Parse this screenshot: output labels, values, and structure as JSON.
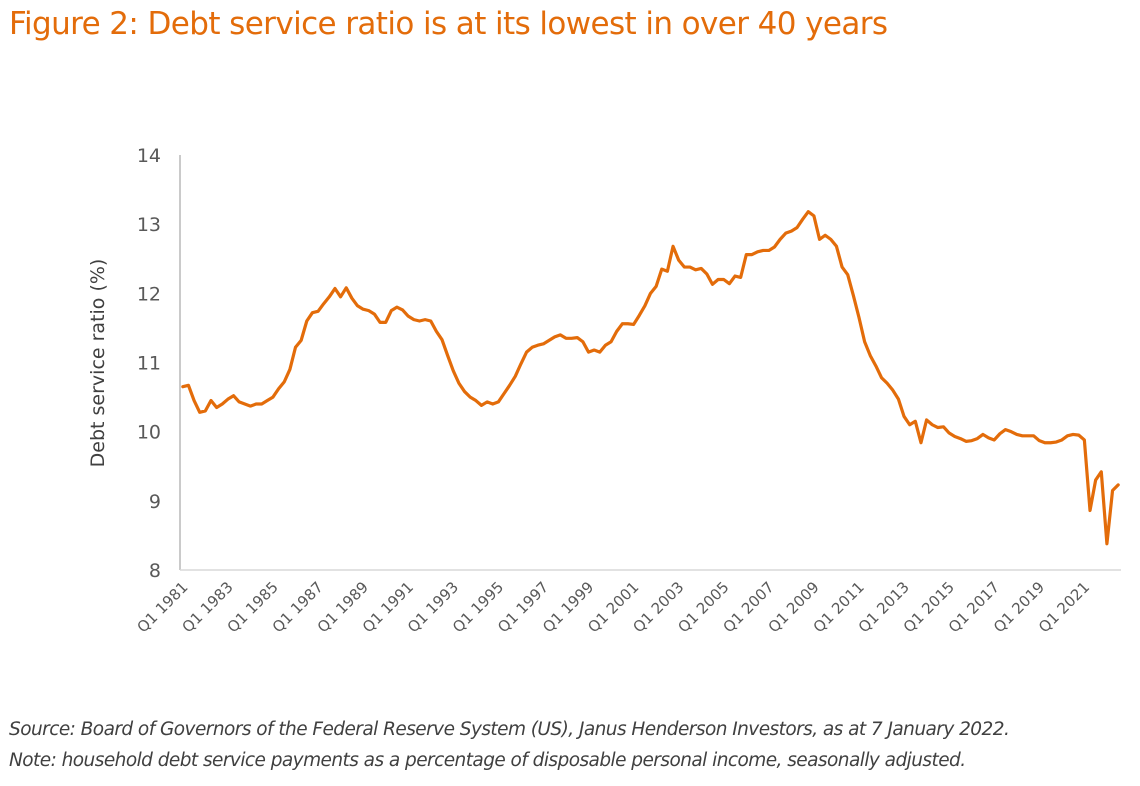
{
  "chart_data": {
    "type": "line",
    "title": "Figure 2: Debt service ratio is at its lowest in over 40 years",
    "xlabel": "",
    "ylabel": "Debt service ratio (%)",
    "ylim": [
      8,
      14
    ],
    "yticks": [
      8,
      9,
      10,
      11,
      12,
      13,
      14
    ],
    "grid": false,
    "legend": "none",
    "line_color": "#e36c0a",
    "x_start": "Q1 1981",
    "x_end": "Q3 2021",
    "x_frequency": "quarterly",
    "xtick_labels": [
      "Q1 1981",
      "Q1 1983",
      "Q1 1985",
      "Q1 1987",
      "Q1 1989",
      "Q1 1991",
      "Q1 1993",
      "Q1 1995",
      "Q1 1997",
      "Q1 1999",
      "Q1 2001",
      "Q1 2003",
      "Q1 2005",
      "Q1 2007",
      "Q1 2009",
      "Q1 2011",
      "Q1 2013",
      "Q1 2015",
      "Q1 2017",
      "Q1 2019",
      "Q1 2021"
    ],
    "xtick_every_n_points": 8,
    "series": [
      {
        "name": "Debt service ratio",
        "values": [
          10.65,
          10.67,
          10.45,
          10.28,
          10.3,
          10.45,
          10.35,
          10.4,
          10.47,
          10.52,
          10.43,
          10.4,
          10.37,
          10.4,
          10.4,
          10.45,
          10.5,
          10.62,
          10.72,
          10.9,
          11.22,
          11.32,
          11.6,
          11.72,
          11.74,
          11.85,
          11.95,
          12.07,
          11.95,
          12.08,
          11.93,
          11.82,
          11.77,
          11.75,
          11.7,
          11.58,
          11.58,
          11.75,
          11.8,
          11.76,
          11.67,
          11.62,
          11.6,
          11.62,
          11.6,
          11.45,
          11.33,
          11.1,
          10.88,
          10.7,
          10.58,
          10.5,
          10.45,
          10.38,
          10.43,
          10.4,
          10.43,
          10.55,
          10.67,
          10.8,
          10.98,
          11.15,
          11.22,
          11.25,
          11.27,
          11.32,
          11.37,
          11.4,
          11.35,
          11.35,
          11.36,
          11.3,
          11.15,
          11.18,
          11.15,
          11.25,
          11.3,
          11.45,
          11.56,
          11.56,
          11.55,
          11.68,
          11.82,
          12.0,
          12.1,
          12.35,
          12.32,
          12.68,
          12.48,
          12.38,
          12.38,
          12.34,
          12.36,
          12.28,
          12.13,
          12.2,
          12.2,
          12.14,
          12.25,
          12.23,
          12.56,
          12.56,
          12.6,
          12.62,
          12.62,
          12.67,
          12.78,
          12.87,
          12.9,
          12.95,
          13.07,
          13.18,
          13.12,
          12.78,
          12.84,
          12.78,
          12.68,
          12.38,
          12.27,
          11.97,
          11.65,
          11.3,
          11.1,
          10.95,
          10.78,
          10.7,
          10.6,
          10.47,
          10.22,
          10.1,
          10.15,
          9.84,
          10.17,
          10.1,
          10.06,
          10.07,
          9.98,
          9.93,
          9.9,
          9.86,
          9.87,
          9.9,
          9.96,
          9.91,
          9.88,
          9.97,
          10.03,
          10.0,
          9.96,
          9.94,
          9.94,
          9.94,
          9.87,
          9.84,
          9.84,
          9.85,
          9.88,
          9.94,
          9.96,
          9.95,
          9.88,
          8.86,
          9.3,
          9.42,
          8.38,
          9.15,
          9.23
        ]
      }
    ]
  },
  "figure": {
    "title": "Figure 2: Debt service ratio is at its lowest in over 40 years",
    "source": "Source: Board of Governors of the Federal Reserve System (US), Janus Henderson Investors, as at 7 January 2022.",
    "note": "Note: household debt service payments as a percentage of disposable personal income, seasonally adjusted."
  }
}
